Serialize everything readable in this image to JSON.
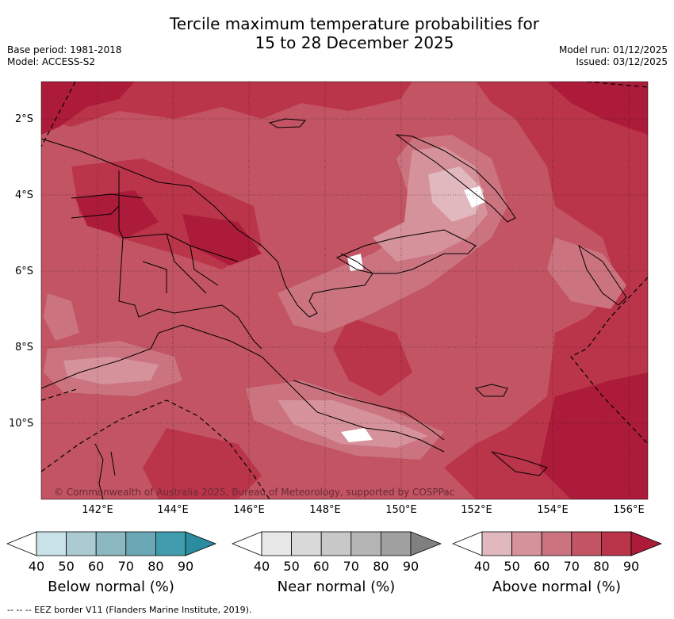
{
  "header": {
    "title_line1": "Tercile maximum temperature probabilities for",
    "title_line2": "15 to 28 December 2025",
    "base_period": "Base period: 1981-2018",
    "model": "Model: ACCESS-S2",
    "model_run": "Model run: 01/12/2025",
    "issued": "Issued: 03/12/2025"
  },
  "map": {
    "lat_labels": [
      "2°S",
      "4°S",
      "6°S",
      "8°S",
      "10°S"
    ],
    "lon_labels": [
      "142°E",
      "144°E",
      "146°E",
      "148°E",
      "150°E",
      "152°E",
      "154°E",
      "156°E"
    ],
    "copyright": "© Commonwealth of Australia 2025, Bureau of Meteorology, supported by COSPPac",
    "colors": {
      "above_40": "#e0b8be",
      "above_50": "#d6929b",
      "above_60": "#cb7480",
      "above_70": "#c25463",
      "above_80": "#bb354a",
      "above_90": "#ac1c3a"
    }
  },
  "legend": {
    "below": {
      "title": "Below normal (%)",
      "ticks": [
        "40",
        "50",
        "60",
        "70",
        "80",
        "90"
      ],
      "colors": [
        "#ffffff",
        "#c9e2e8",
        "#a9cbd1",
        "#8bb7c1",
        "#6aa8b6",
        "#419cad",
        "#2a8c9e"
      ]
    },
    "near": {
      "title": "Near normal (%)",
      "ticks": [
        "40",
        "50",
        "60",
        "70",
        "80",
        "90"
      ],
      "colors": [
        "#ffffff",
        "#e8e8e8",
        "#d9d9d9",
        "#c8c8c8",
        "#b5b5b5",
        "#a0a0a0",
        "#808080"
      ]
    },
    "above": {
      "title": "Above normal (%)",
      "ticks": [
        "40",
        "50",
        "60",
        "70",
        "80",
        "90"
      ],
      "colors": [
        "#ffffff",
        "#e0b8be",
        "#d6929b",
        "#cb7480",
        "#c25463",
        "#bb354a",
        "#ac1c3a"
      ]
    }
  },
  "footnote": "--  --  -- EEZ border V11 (Flanders Marine Institute, 2019)."
}
